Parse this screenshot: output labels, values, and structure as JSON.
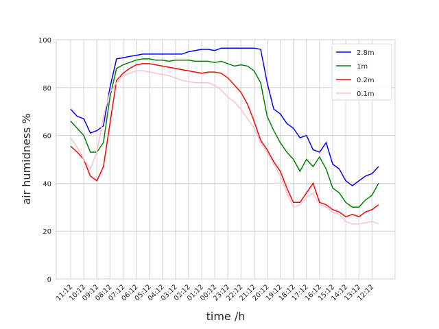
{
  "chart_data": {
    "type": "line",
    "x_label": "time /h",
    "y_label": "air humidness  %",
    "categories": [
      "11:12",
      null,
      "10:12",
      null,
      "09:12",
      null,
      "08:12",
      null,
      "07:12",
      null,
      "06:12",
      null,
      "05:12",
      null,
      "04:12",
      null,
      "03:12",
      null,
      "02:12",
      null,
      "01:12",
      null,
      "00:12",
      null,
      "23:12",
      null,
      "22:12",
      null,
      "21:12",
      null,
      "20:12",
      null,
      "19:12",
      null,
      "18:12",
      null,
      "17:12",
      null,
      "16:12",
      null,
      "15:12",
      null,
      "14:12",
      null,
      "13:12",
      null,
      "12:12",
      null
    ],
    "series": [
      {
        "name": "2.8m",
        "color": "#0000ff",
        "values": [
          71,
          68,
          67,
          61,
          62,
          64,
          80,
          92,
          92.5,
          93,
          93.5,
          94,
          94,
          94,
          94,
          94,
          94,
          94,
          95,
          95.5,
          96,
          96,
          95.5,
          96.5,
          96.5,
          96.5,
          96.5,
          96.5,
          96.5,
          96,
          82,
          71,
          69,
          65,
          63,
          59,
          60,
          54,
          53,
          57,
          48,
          46,
          41,
          39,
          41,
          43,
          44,
          47
        ]
      },
      {
        "name": "1m",
        "color": "#008000",
        "values": [
          66,
          63,
          60,
          53,
          53,
          57,
          76,
          88,
          89.5,
          90.5,
          91.5,
          92,
          92,
          91.5,
          91.5,
          91,
          91.5,
          91.5,
          91.5,
          91,
          91,
          91,
          90.5,
          91,
          90,
          89,
          89.5,
          89,
          87,
          82,
          68,
          62,
          57,
          53,
          50,
          45,
          50,
          47,
          51,
          46,
          38,
          36,
          32,
          30,
          30,
          33,
          35,
          40
        ]
      },
      {
        "name": "0.2m",
        "color": "#ff0000",
        "values": [
          55.5,
          53,
          50,
          43,
          41,
          47,
          65,
          83,
          86,
          88,
          89.5,
          90,
          90,
          89.5,
          89,
          88.5,
          88,
          87.5,
          87,
          86.5,
          86,
          86.5,
          86.5,
          86,
          84,
          81,
          78,
          73,
          66,
          58,
          54,
          49,
          45,
          38,
          32,
          32,
          36,
          40,
          32,
          31,
          29,
          28,
          26,
          27,
          26,
          28,
          29,
          31
        ]
      },
      {
        "name": "0.1m",
        "color": "#ffc0cb",
        "values": [
          59,
          55,
          50,
          46,
          53,
          68,
          78,
          82,
          85,
          86,
          87,
          87,
          86.5,
          86,
          85.5,
          85,
          84,
          83,
          82.5,
          82,
          82,
          82,
          81,
          79,
          76,
          74,
          71,
          67,
          63,
          57,
          53,
          48,
          43,
          36,
          30,
          31,
          34,
          36,
          31,
          30,
          28,
          27,
          24,
          23,
          23,
          23.5,
          24,
          23
        ]
      }
    ],
    "ylim": [
      0,
      100
    ],
    "yticks": [
      0,
      20,
      40,
      60,
      80,
      100
    ],
    "grid": true,
    "legend": "upper right"
  }
}
